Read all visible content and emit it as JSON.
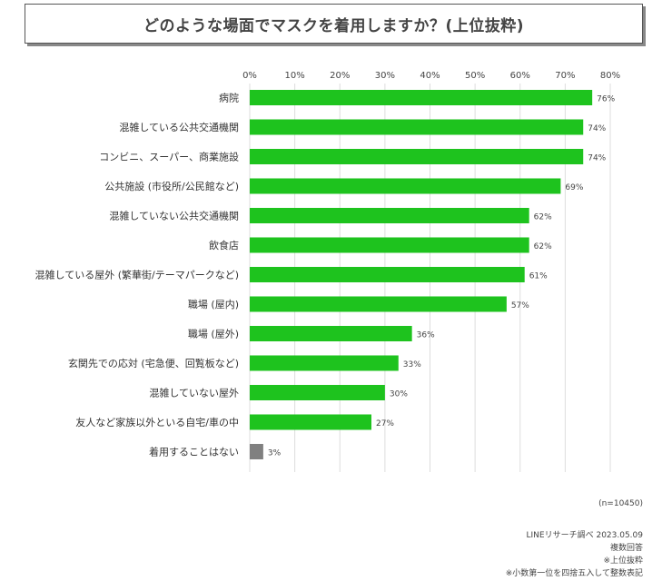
{
  "chart_data": {
    "type": "bar",
    "orientation": "horizontal",
    "title": "どのような場面でマスクを着用しますか？(上位抜粋)",
    "categories": [
      "病院",
      "混雑している公共交通機関",
      "コンビニ、スーパー、商業施設",
      "公共施設 (市役所/公民館など)",
      "混雑していない公共交通機関",
      "飲食店",
      "混雑している屋外 (繁華街/テーマパークなど)",
      "職場 (屋内)",
      "職場 (屋外)",
      "玄関先での応対 (宅急便、回覧板など)",
      "混雑していない屋外",
      "友人など家族以外といる自宅/車の中",
      "着用することはない"
    ],
    "values": [
      76,
      74,
      74,
      69,
      62,
      62,
      61,
      57,
      36,
      33,
      30,
      27,
      3
    ],
    "value_labels": [
      "76%",
      "74%",
      "74%",
      "69%",
      "62%",
      "62%",
      "61%",
      "57%",
      "36%",
      "33%",
      "30%",
      "27%",
      "3%"
    ],
    "xlim": [
      0,
      80
    ],
    "xticks": [
      "0%",
      "10%",
      "20%",
      "30%",
      "40%",
      "50%",
      "60%",
      "70%",
      "80%"
    ],
    "xlabel": "",
    "ylabel": "",
    "grid": true,
    "colors": {
      "main": "#1ec31e",
      "none": "#808080",
      "grid": "#dddddd"
    }
  },
  "notes": {
    "n": "(n=10450)",
    "source": "LINEリサーチ調べ 2023.05.09",
    "multiple": "複数回答",
    "excerpt": "※上位抜粋",
    "rounding": "※小数第一位を四捨五入して整数表記"
  }
}
